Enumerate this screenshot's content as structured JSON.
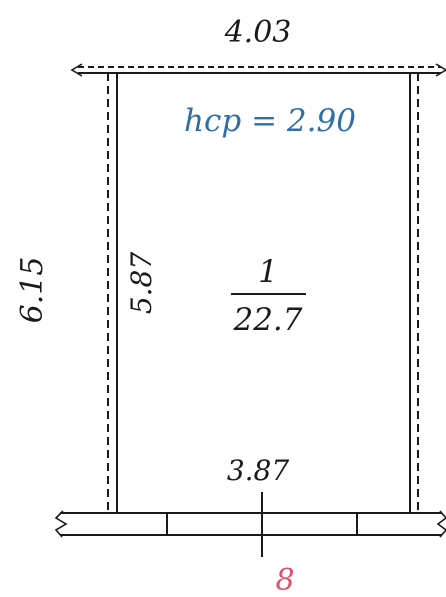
{
  "plan": {
    "total_width": "4.03",
    "total_length": "6.15",
    "ceiling_height": "hcp = 2.90",
    "inner_length": "5.87",
    "inner_width": "3.87",
    "room_number": "1",
    "room_area": "22.7",
    "section_mark": "8"
  },
  "colors": {
    "line": "#1a1a1a",
    "ceiling_height_text": "#2e6fa8",
    "section_mark_text": "#d9566e"
  }
}
